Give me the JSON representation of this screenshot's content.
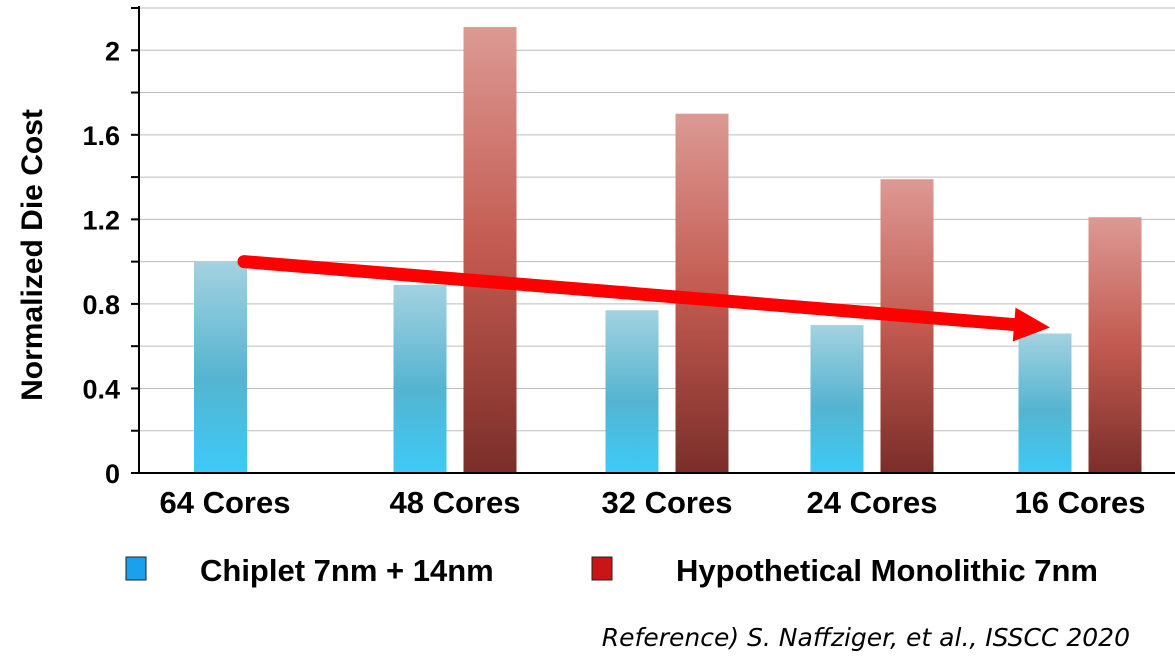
{
  "chart_data": {
    "type": "bar",
    "ylabel": "Normalized Die Cost",
    "xlabel": "",
    "ylim": [
      0,
      2.2
    ],
    "yticks": [
      "0",
      "0.4",
      "0.8",
      "1.2",
      "1.6",
      "2"
    ],
    "grid": "horizontal",
    "categories": [
      "64 Cores",
      "48 Cores",
      "32 Cores",
      "24 Cores",
      "16 Cores"
    ],
    "series": [
      {
        "name": "Chiplet 7nm + 14nm",
        "color": "#29a8e0",
        "values": [
          1.0,
          0.89,
          0.77,
          0.7,
          0.66
        ]
      },
      {
        "name": "Hypothetical Monolithic 7nm",
        "color": "#c0262a",
        "values": [
          null,
          2.11,
          1.7,
          1.39,
          1.21
        ]
      }
    ],
    "annotations": {
      "trend_arrow": {
        "from_category": "64 Cores",
        "from_value": 1.0,
        "to_category": "16 Cores",
        "to_value": 0.66,
        "color": "#ff0000"
      }
    },
    "legend": "bottom"
  },
  "reference": "Reference) S. Naffziger, et al., ISSCC 2020"
}
